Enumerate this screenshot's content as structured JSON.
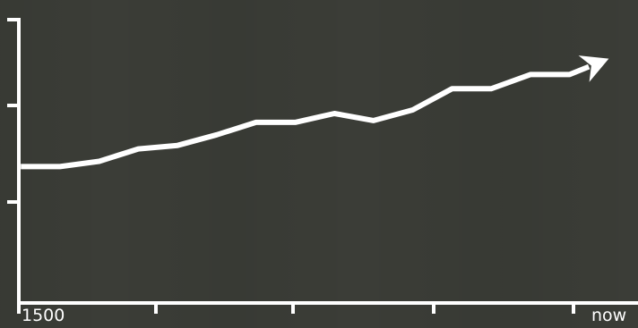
{
  "chart_data": {
    "type": "line",
    "title": "",
    "xlabel": "",
    "ylabel": "",
    "x_tick_labels": [
      "1500",
      "",
      "",
      "",
      "now"
    ],
    "y_tick_count": 3,
    "grid": false,
    "legend": "none",
    "arrow_at_end": true,
    "x": [
      0,
      1,
      2,
      3,
      4,
      5,
      6,
      7,
      8,
      9,
      10,
      11,
      12,
      13,
      14,
      15
    ],
    "values": [
      0.77,
      0.77,
      0.8,
      0.87,
      0.89,
      0.95,
      1.02,
      1.02,
      1.07,
      1.03,
      1.09,
      1.21,
      1.21,
      1.29,
      1.29,
      1.38
    ],
    "ylim": [
      0.0,
      1.6
    ],
    "xlim": [
      -0.05,
      15.7
    ],
    "line_color": "#ffffff",
    "background_color": "#3b3d37"
  }
}
